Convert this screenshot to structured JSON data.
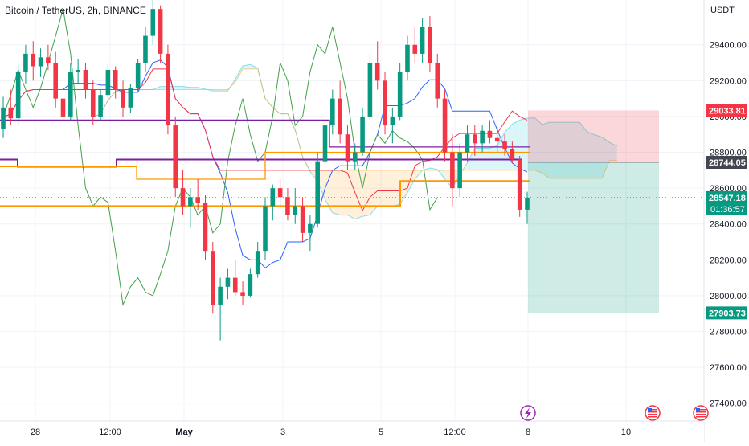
{
  "header": {
    "title": "Bitcoin / TetherUS, 2h, BINANCE"
  },
  "chart_data": {
    "type": "candlestick",
    "symbol": "Bitcoin / TetherUS",
    "interval": "2h",
    "exchange": "BINANCE",
    "currency_label": "USDT",
    "ylim": [
      27300,
      29650
    ],
    "y_ticks": [
      27400,
      27600,
      27800,
      28000,
      28200,
      28400,
      28600,
      28800,
      29000,
      29200,
      29400
    ],
    "y_tick_labels": [
      "27400.00",
      "27600.00",
      "27800.00",
      "28000.00",
      "28200.00",
      "28400.00",
      "28600.00",
      "28800.00",
      "29000.00",
      "29200.00",
      "29400.00"
    ],
    "x_ticks": [
      {
        "label": "28",
        "bold": false
      },
      {
        "label": "12:00",
        "bold": false
      },
      {
        "label": "May",
        "bold": true
      },
      {
        "label": "3",
        "bold": false
      },
      {
        "label": "5",
        "bold": false
      },
      {
        "label": "12:00",
        "bold": false
      },
      {
        "label": "8",
        "bold": false
      },
      {
        "label": "10",
        "bold": false
      }
    ],
    "price_tags": [
      {
        "label": "29033.81",
        "value": 29033.81,
        "color": "#f23645",
        "kind": "target"
      },
      {
        "label": "28744.05",
        "value": 28744.05,
        "color": "#434651",
        "kind": "entry"
      },
      {
        "label": "28547.18",
        "value": 28547.18,
        "sublabel": "01:36:57",
        "color": "#089981",
        "kind": "last"
      },
      {
        "label": "27903.73",
        "value": 27903.73,
        "color": "#089981",
        "kind": "stop"
      }
    ],
    "position": {
      "entry": 28744.05,
      "stop_zone_top": 29033.81,
      "profit_zone_bottom": 27903.73
    },
    "candles_ohlc": [
      [
        28930,
        29110,
        28880,
        29050
      ],
      [
        29050,
        29150,
        28950,
        28990
      ],
      [
        28990,
        29300,
        28950,
        29250
      ],
      [
        29250,
        29400,
        29180,
        29350
      ],
      [
        29350,
        29420,
        29200,
        29280
      ],
      [
        29280,
        29380,
        29220,
        29330
      ],
      [
        29330,
        29400,
        29260,
        29300
      ],
      [
        29300,
        29360,
        29050,
        29100
      ],
      [
        29100,
        29150,
        28950,
        29000
      ],
      [
        29000,
        29300,
        28980,
        29250
      ],
      [
        29250,
        29320,
        29180,
        29260
      ],
      [
        29260,
        29300,
        29100,
        29150
      ],
      [
        29150,
        29200,
        28950,
        29000
      ],
      [
        29000,
        29150,
        28980,
        29120
      ],
      [
        29120,
        29300,
        29100,
        29260
      ],
      [
        29260,
        29280,
        29100,
        29150
      ],
      [
        29150,
        29200,
        29000,
        29050
      ],
      [
        29050,
        29180,
        29020,
        29160
      ],
      [
        29160,
        29320,
        29140,
        29300
      ],
      [
        29300,
        29500,
        29250,
        29450
      ],
      [
        29450,
        29650,
        29400,
        29600
      ],
      [
        29600,
        29620,
        29300,
        29350
      ],
      [
        29350,
        29400,
        28900,
        28950
      ],
      [
        28950,
        29000,
        28550,
        28600
      ],
      [
        28600,
        28700,
        28450,
        28500
      ],
      [
        28500,
        28600,
        28380,
        28550
      ],
      [
        28550,
        28650,
        28480,
        28520
      ],
      [
        28520,
        28560,
        28200,
        28250
      ],
      [
        28250,
        28300,
        27900,
        27950
      ],
      [
        27950,
        28100,
        27750,
        28050
      ],
      [
        28050,
        28150,
        27980,
        28100
      ],
      [
        28100,
        28200,
        28000,
        28020
      ],
      [
        28020,
        28080,
        27950,
        28000
      ],
      [
        28000,
        28150,
        27990,
        28120
      ],
      [
        28120,
        28300,
        28100,
        28250
      ],
      [
        28250,
        28550,
        28200,
        28500
      ],
      [
        28500,
        28620,
        28420,
        28600
      ],
      [
        28600,
        28650,
        28500,
        28550
      ],
      [
        28550,
        28600,
        28420,
        28450
      ],
      [
        28450,
        28600,
        28400,
        28500
      ],
      [
        28500,
        28550,
        28300,
        28350
      ],
      [
        28350,
        28450,
        28250,
        28400
      ],
      [
        28400,
        28800,
        28380,
        28750
      ],
      [
        28750,
        29000,
        28700,
        28950
      ],
      [
        28950,
        29150,
        28900,
        29100
      ],
      [
        29100,
        29200,
        28850,
        28900
      ],
      [
        28900,
        28950,
        28700,
        28750
      ],
      [
        28750,
        28850,
        28700,
        28800
      ],
      [
        28800,
        29050,
        28780,
        29000
      ],
      [
        29000,
        29350,
        28980,
        29300
      ],
      [
        29300,
        29420,
        29150,
        29200
      ],
      [
        29200,
        29250,
        28900,
        28950
      ],
      [
        28950,
        29050,
        28850,
        29000
      ],
      [
        29000,
        29300,
        28980,
        29250
      ],
      [
        29250,
        29450,
        29200,
        29400
      ],
      [
        29400,
        29500,
        29300,
        29350
      ],
      [
        29350,
        29550,
        29300,
        29500
      ],
      [
        29500,
        29560,
        29250,
        29300
      ],
      [
        29300,
        29350,
        29050,
        29100
      ],
      [
        29100,
        29150,
        28750,
        28800
      ],
      [
        28800,
        28900,
        28500,
        28600
      ],
      [
        28600,
        28850,
        28550,
        28800
      ],
      [
        28800,
        28950,
        28750,
        28900
      ],
      [
        28900,
        28950,
        28780,
        28850
      ],
      [
        28850,
        28950,
        28800,
        28920
      ],
      [
        28920,
        28980,
        28850,
        28880
      ],
      [
        28880,
        28940,
        28800,
        28860
      ],
      [
        28860,
        28900,
        28780,
        28820
      ],
      [
        28820,
        28860,
        28740,
        28760
      ],
      [
        28760,
        28780,
        28440,
        28480
      ],
      [
        28480,
        28580,
        28400,
        28547
      ]
    ],
    "overlays": [
      {
        "name": "Tenkan",
        "color": "#2962ff"
      },
      {
        "name": "Kijun",
        "color": "#f23645"
      },
      {
        "name": "Chikou",
        "color": "#43a047"
      },
      {
        "name": "Cloud",
        "color": "#ff9800"
      },
      {
        "name": "Level",
        "color": "#7b1fa2"
      }
    ]
  }
}
